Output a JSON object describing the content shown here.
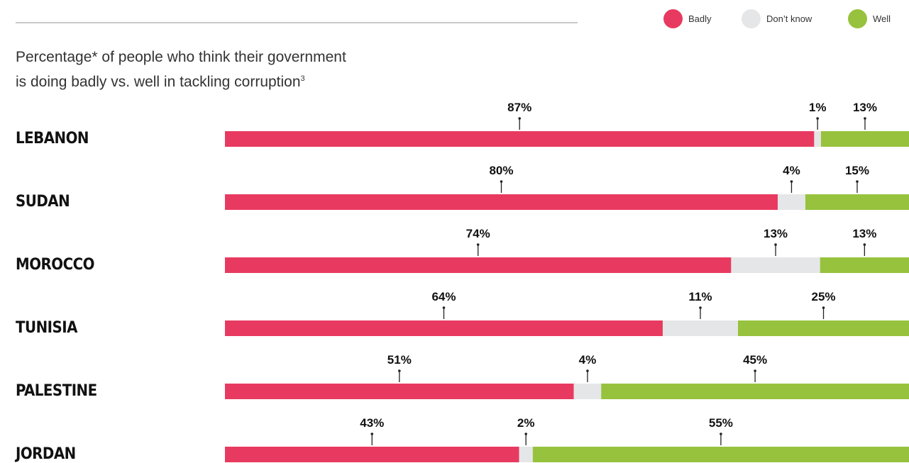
{
  "subtitle": {
    "line1": "Percentage* of people who think their government",
    "line2": "is doing badly vs. well in tackling corruption",
    "footnote_mark": "3"
  },
  "legend": [
    {
      "label": "Badly",
      "color": "#e83a60"
    },
    {
      "label": "Don’t know",
      "color": "#e5e6e8"
    },
    {
      "label": "Well",
      "color": "#97c23d"
    }
  ],
  "chart_data": {
    "type": "bar",
    "orientation": "horizontal",
    "stacked": true,
    "categories": [
      "LEBANON",
      "SUDAN",
      "MOROCCO",
      "TUNISIA",
      "PALESTINE",
      "JORDAN"
    ],
    "series": [
      {
        "name": "Badly",
        "color": "#e83a60",
        "values": [
          87,
          80,
          74,
          64,
          51,
          43
        ]
      },
      {
        "name": "Don’t know",
        "color": "#e5e6e8",
        "values": [
          1,
          4,
          13,
          11,
          4,
          2
        ]
      },
      {
        "name": "Well",
        "color": "#97c23d",
        "values": [
          13,
          15,
          13,
          25,
          45,
          55
        ]
      }
    ],
    "value_suffix": "%",
    "legend_position": "top-right",
    "grid": false
  }
}
